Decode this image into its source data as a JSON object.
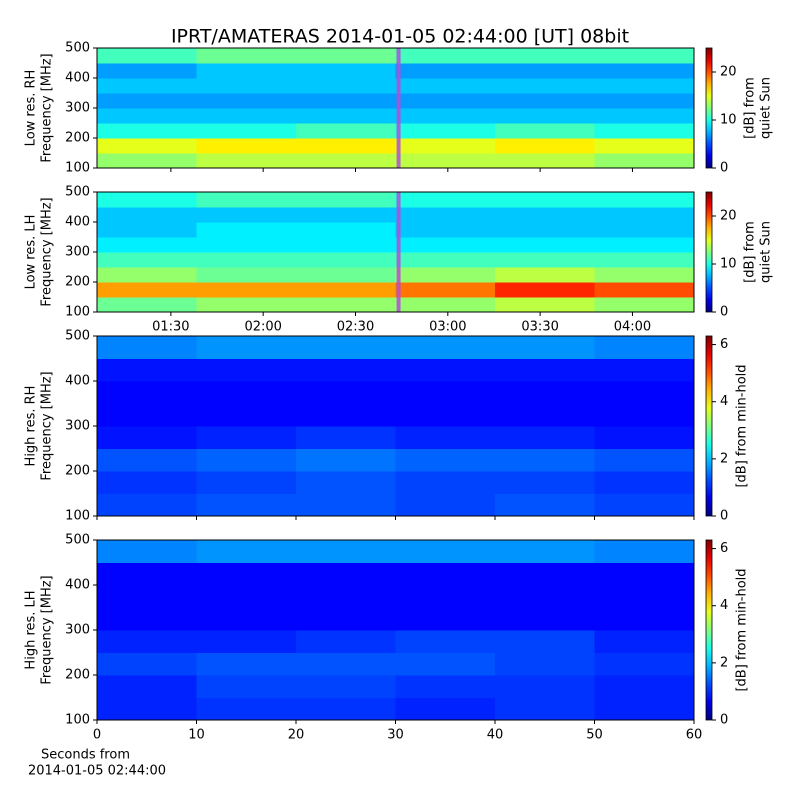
{
  "title": "IPRT/AMATERAS 2014-01-05 02:44:00 [UT]   08bit",
  "chart_data": [
    {
      "type": "heatmap",
      "ylabel": [
        "Low res. RH",
        "Frequency [MHz]"
      ],
      "ylim": [
        100,
        500
      ],
      "yticks": [
        100,
        200,
        300,
        400,
        500
      ],
      "xlim": [
        66,
        260
      ],
      "xticks": [
        {
          "value": 90,
          "label": "01:30"
        },
        {
          "value": 120,
          "label": "02:00"
        },
        {
          "value": 150,
          "label": "02:30"
        },
        {
          "value": 180,
          "label": "03:00"
        },
        {
          "value": 210,
          "label": "03:30"
        },
        {
          "value": 240,
          "label": "04:00"
        }
      ],
      "xticklabels": false,
      "marker_x": 164,
      "marker_color": "#b44dd8",
      "clim": [
        0,
        25
      ],
      "cticks": [
        0,
        10,
        20
      ],
      "clabel": [
        "[dB] from",
        "quiet Sun"
      ],
      "z": [
        [
          13,
          14,
          14,
          14,
          14,
          13
        ],
        [
          15,
          16,
          16,
          15,
          16,
          15
        ],
        [
          10,
          10,
          11,
          10,
          11,
          10
        ],
        [
          8,
          8,
          8,
          8,
          8,
          8
        ],
        [
          7,
          7,
          7,
          7,
          7,
          7
        ],
        [
          8,
          8,
          8,
          8,
          8,
          8
        ],
        [
          7,
          8,
          8,
          7,
          7,
          7
        ],
        [
          11,
          12,
          12,
          11,
          11,
          11
        ]
      ]
    },
    {
      "type": "heatmap",
      "ylabel": [
        "Low res. LH",
        "Frequency [MHz]"
      ],
      "ylim": [
        100,
        500
      ],
      "yticks": [
        100,
        200,
        300,
        400,
        500
      ],
      "xlim": [
        66,
        260
      ],
      "xticks": [
        {
          "value": 90,
          "label": "01:30"
        },
        {
          "value": 120,
          "label": "02:00"
        },
        {
          "value": 150,
          "label": "02:30"
        },
        {
          "value": 180,
          "label": "03:00"
        },
        {
          "value": 210,
          "label": "03:30"
        },
        {
          "value": 240,
          "label": "04:00"
        }
      ],
      "xticklabels": true,
      "marker_x": 164,
      "marker_color": "#b44dd8",
      "clim": [
        0,
        25
      ],
      "cticks": [
        0,
        10,
        20
      ],
      "clabel": [
        "[dB] from",
        "quiet Sun"
      ],
      "z": [
        [
          12,
          13,
          13,
          13,
          14,
          13
        ],
        [
          18,
          18,
          18,
          19,
          21,
          20
        ],
        [
          13,
          12,
          12,
          13,
          14,
          13
        ],
        [
          11,
          11,
          11,
          11,
          11,
          11
        ],
        [
          9,
          9,
          9,
          9,
          9,
          9
        ],
        [
          8,
          9,
          9,
          8,
          8,
          8
        ],
        [
          8,
          8,
          8,
          8,
          8,
          8
        ],
        [
          10,
          11,
          11,
          10,
          10,
          10
        ]
      ]
    },
    {
      "type": "heatmap",
      "ylabel": [
        "High res. RH",
        "Frequency [MHz]"
      ],
      "ylim": [
        100,
        500
      ],
      "yticks": [
        100,
        200,
        300,
        400,
        500
      ],
      "xlim": [
        0,
        60
      ],
      "xticks": [
        0,
        10,
        20,
        30,
        40,
        50,
        60
      ],
      "xticklabels": false,
      "clim": [
        0,
        6.3
      ],
      "cticks": [
        0,
        2,
        4,
        6
      ],
      "clabel": [
        "[dB] from min-hold"
      ],
      "z": [
        [
          1.2,
          1.3,
          1.3,
          1.2,
          1.3,
          1.2
        ],
        [
          1.1,
          1.2,
          1.3,
          1.2,
          1.2,
          1.1
        ],
        [
          1.3,
          1.4,
          1.5,
          1.4,
          1.4,
          1.3
        ],
        [
          0.9,
          1.0,
          1.1,
          1.0,
          1.0,
          0.9
        ],
        [
          0.8,
          0.8,
          0.8,
          0.8,
          0.8,
          0.8
        ],
        [
          0.8,
          0.8,
          0.8,
          0.8,
          0.8,
          0.8
        ],
        [
          0.9,
          0.9,
          0.9,
          0.9,
          0.9,
          0.9
        ],
        [
          1.6,
          1.7,
          1.7,
          1.7,
          1.7,
          1.6
        ]
      ]
    },
    {
      "type": "heatmap",
      "ylabel": [
        "High res. LH",
        "Frequency [MHz]"
      ],
      "ylim": [
        100,
        500
      ],
      "yticks": [
        100,
        200,
        300,
        400,
        500
      ],
      "xlim": [
        0,
        60
      ],
      "xticks": [
        0,
        10,
        20,
        30,
        40,
        50,
        60
      ],
      "xticklabels": true,
      "clim": [
        0,
        6.3
      ],
      "cticks": [
        0,
        2,
        4,
        6
      ],
      "clabel": [
        "[dB] from min-hold"
      ],
      "xlabel": [
        "Seconds from",
        "2014-01-05 02:44:00"
      ],
      "z": [
        [
          1.0,
          1.1,
          1.1,
          1.0,
          1.1,
          1.0
        ],
        [
          1.0,
          1.2,
          1.2,
          1.1,
          1.1,
          1.0
        ],
        [
          1.2,
          1.3,
          1.3,
          1.3,
          1.2,
          1.1
        ],
        [
          1.0,
          1.0,
          1.1,
          1.2,
          1.2,
          1.0
        ],
        [
          0.8,
          0.8,
          0.8,
          0.8,
          0.8,
          0.8
        ],
        [
          0.8,
          0.8,
          0.8,
          0.8,
          0.8,
          0.8
        ],
        [
          0.8,
          0.8,
          0.8,
          0.8,
          0.8,
          0.8
        ],
        [
          1.6,
          1.7,
          1.7,
          1.7,
          1.7,
          1.6
        ]
      ]
    }
  ]
}
